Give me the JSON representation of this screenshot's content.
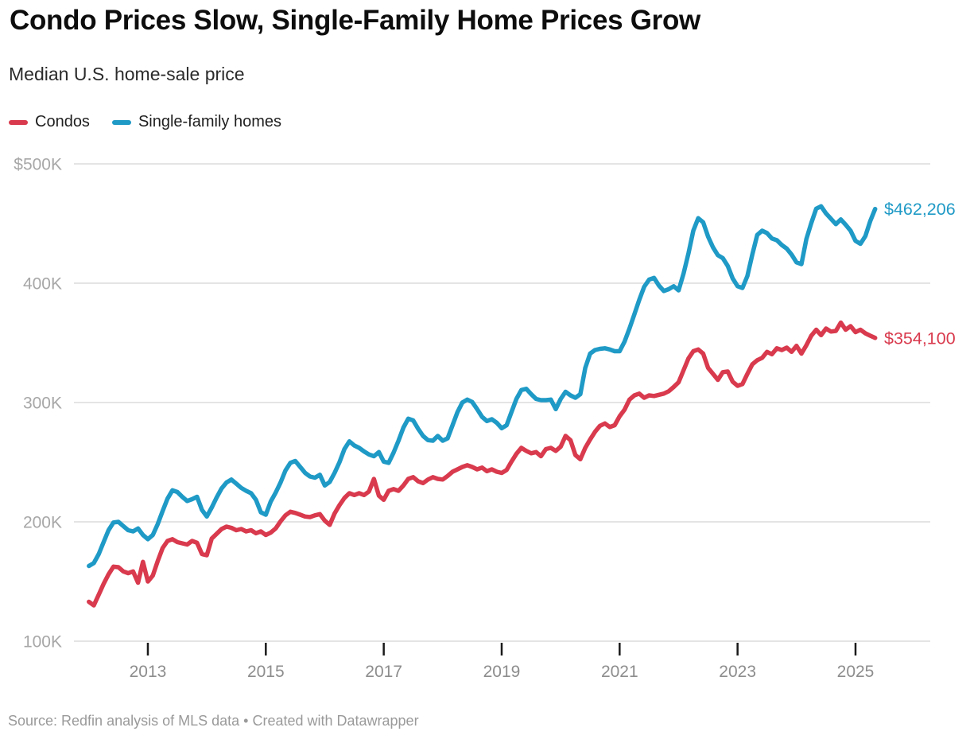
{
  "header": {
    "title": "Condo Prices Slow, Single-Family Home Prices Grow",
    "subtitle": "Median U.S. home-sale price"
  },
  "footer": {
    "source": "Source: Redfin analysis of MLS data • Created with Datawrapper"
  },
  "chart_data": {
    "type": "line",
    "title": "Condo Prices Slow, Single-Family Home Prices Grow",
    "subtitle": "Median U.S. home-sale price",
    "grid": "horizontal",
    "legend_position": "top-left",
    "x_unit": "month",
    "x_start": "2012-01",
    "x_end": "2025-05",
    "x_months_count": 161,
    "x_tick_labels": [
      "2013",
      "2015",
      "2017",
      "2019",
      "2021",
      "2023",
      "2025"
    ],
    "y_tick_labels": [
      "$500K",
      "400K",
      "300K",
      "200K",
      "100K"
    ],
    "y_tick_values": [
      500,
      400,
      300,
      200,
      100
    ],
    "ylim_k_usd": [
      100,
      510
    ],
    "values_unit": "USD thousands",
    "series": [
      {
        "name": "Condos",
        "color": "#d93a4d",
        "end_label": "$354,100",
        "end_value_usd": 354100,
        "values_k_usd": [
          133,
          130,
          139,
          148,
          156,
          162.5,
          162,
          158.5,
          157,
          158.5,
          149,
          166.5,
          150,
          155,
          167,
          178,
          184,
          185.5,
          183,
          182,
          181,
          184,
          182.5,
          173,
          172,
          186,
          190,
          194,
          196,
          195,
          193,
          194,
          192,
          193,
          190.5,
          192,
          189,
          191,
          194.5,
          200.5,
          205.5,
          208.5,
          207.5,
          206,
          204.5,
          204,
          205.5,
          206.5,
          201,
          197.5,
          207,
          214,
          220,
          224,
          222.5,
          224,
          222.5,
          225.5,
          236,
          222,
          218.5,
          226,
          227.5,
          226,
          230.5,
          236,
          237.5,
          234,
          232.5,
          235.5,
          237.5,
          236,
          235.5,
          238.5,
          242,
          244,
          246,
          247.5,
          246,
          244,
          245.5,
          242.5,
          244,
          242,
          241,
          243.5,
          250.5,
          257,
          262,
          259.5,
          257.5,
          258.5,
          255,
          261,
          262,
          259.5,
          263,
          272,
          268.5,
          256,
          252.5,
          262,
          269,
          275.5,
          280.5,
          282.5,
          279.5,
          281,
          288.5,
          294,
          302.5,
          306,
          307.5,
          304,
          306,
          305.5,
          306.5,
          307.5,
          309.5,
          313,
          317,
          327,
          337,
          343,
          344.5,
          341,
          329,
          324,
          319,
          325.5,
          326,
          317.5,
          314,
          315.5,
          324,
          332,
          335.5,
          337.5,
          342.5,
          340.5,
          345.5,
          344,
          346,
          342.5,
          347.5,
          341,
          348,
          356,
          361,
          356.5,
          362,
          359.5,
          360,
          367,
          361,
          364,
          359,
          361,
          358,
          356,
          354.1
        ]
      },
      {
        "name": "Single-family homes",
        "color": "#1f9ac6",
        "end_label": "$462,206",
        "end_value_usd": 462206,
        "values_k_usd": [
          163,
          165.5,
          173,
          183,
          193,
          199.5,
          200,
          196.5,
          193,
          192,
          194.5,
          189,
          185.5,
          189,
          198,
          209,
          219.5,
          226.5,
          225,
          221,
          217.5,
          219,
          221,
          210,
          204.5,
          212,
          220.5,
          228,
          233,
          235.5,
          232,
          228.5,
          226,
          224,
          218.5,
          208,
          206,
          217,
          224.5,
          233,
          243,
          249.5,
          251,
          246,
          241,
          238,
          237,
          239.5,
          230.5,
          233.5,
          241,
          250,
          261,
          267.5,
          264,
          262,
          259,
          256.5,
          255,
          258.5,
          250.5,
          249.5,
          258,
          268,
          279,
          286.5,
          285,
          278,
          272,
          268.5,
          268,
          272,
          268,
          270,
          281,
          292,
          300,
          302.5,
          300.5,
          294.5,
          288,
          284.5,
          286,
          283,
          278.5,
          281,
          292,
          303,
          310.5,
          311.5,
          307,
          303,
          302,
          302,
          302.5,
          294.5,
          303,
          309,
          306,
          304,
          307,
          329,
          341,
          344,
          345,
          345.5,
          344.5,
          343,
          343,
          351,
          362,
          374,
          386,
          397,
          403,
          404.5,
          398,
          393.5,
          395,
          397.5,
          394,
          408,
          425,
          444,
          454.5,
          451,
          439,
          430,
          423.5,
          421,
          414.5,
          404,
          397.5,
          396,
          406,
          424,
          440.5,
          444,
          442,
          437.5,
          436,
          432,
          429,
          424,
          417.5,
          416,
          437,
          450.5,
          462.5,
          464.5,
          458.5,
          454,
          449.5,
          453.5,
          449,
          444,
          435.5,
          433,
          439.5,
          452,
          462.206
        ]
      }
    ]
  }
}
